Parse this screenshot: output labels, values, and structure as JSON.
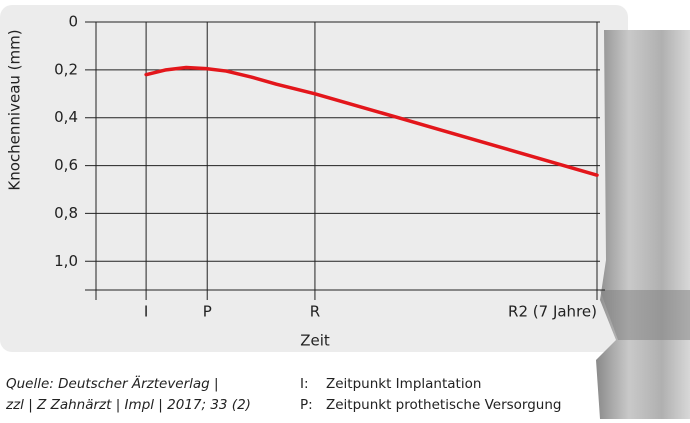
{
  "chart_data": {
    "type": "line",
    "y_label": "Knochenniveau (mm)",
    "x_label": "Zeit",
    "x": [
      10,
      14,
      18,
      22,
      26,
      31,
      36,
      43.7,
      60,
      80,
      100
    ],
    "series": [
      {
        "color": "#e3161b",
        "values": [
          0.22,
          0.2,
          0.19,
          0.195,
          0.205,
          0.23,
          0.26,
          0.3,
          0.398,
          0.519,
          0.64
        ]
      }
    ],
    "xlim": [
      0,
      100
    ],
    "xticks": [
      {
        "value": 10,
        "label": "I"
      },
      {
        "value": 22.2,
        "label": "P"
      },
      {
        "value": 43.7,
        "label": "R"
      },
      {
        "value": 100,
        "label": "R2 (7 Jahre)"
      }
    ],
    "ylim": [
      0,
      1.12
    ],
    "y_inverted": true,
    "yticks": [
      0,
      {
        "value": 0.2,
        "label": "0,2"
      },
      {
        "value": 0.4,
        "label": "0,4"
      },
      {
        "value": 0.6,
        "label": "0,6"
      },
      {
        "value": 0.8,
        "label": "0,8"
      },
      {
        "value": 1.0,
        "label": "1,0"
      }
    ],
    "grid": true,
    "source": [
      "Quelle: Deutscher Ärzteverlag |",
      "zzl | Z Zahnärzt | Impl | 2017; 33 (2)"
    ],
    "notes": [
      {
        "key": "I:",
        "text": "Zeitpunkt Implantation"
      },
      {
        "key": "P:",
        "text": "Zeitpunkt prothetische Versorgung"
      }
    ]
  }
}
